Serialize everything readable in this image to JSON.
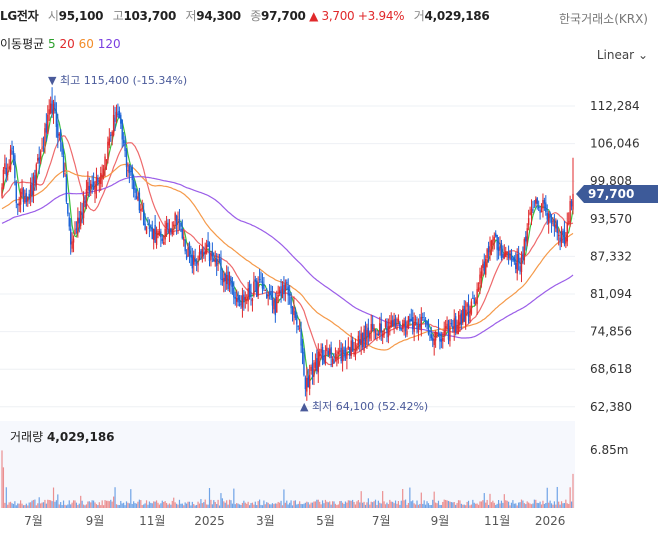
{
  "header": {
    "name": "LG전자",
    "open_label": "시",
    "open": "95,100",
    "high_label": "고",
    "high": "103,700",
    "low_label": "저",
    "low": "94,300",
    "close_label": "종",
    "close": "97,700",
    "change": "▲ 3,700",
    "change_pct": "+3.94%",
    "volume_label": "거",
    "volume": "4,029,186",
    "exchange": "한국거래소(KRX)"
  },
  "moving_average": {
    "label": "이동평균",
    "p5": "5",
    "p20": "20",
    "p60": "60",
    "p120": "120"
  },
  "scale_select": {
    "value": "Linear"
  },
  "current_price_tag": "97,700",
  "volume_panel": {
    "label": "거래량",
    "value": "4,029,186"
  },
  "colors": {
    "up": "#e0292b",
    "down": "#1a62d8",
    "ma5": "#3cc03c",
    "ma20": "#ee6a6c",
    "ma60": "#f59a4a",
    "ma120": "#9b5ee8",
    "tag": "#3d5a99"
  },
  "chart_data": {
    "type": "candlestick",
    "y_ticks": [
      "112,284",
      "106,046",
      "99,808",
      "93,570",
      "87,332",
      "81,094",
      "74,856",
      "68,618",
      "62,380"
    ],
    "y_tick_values": [
      112284,
      106046,
      99808,
      93570,
      87332,
      81094,
      74856,
      68618,
      62380
    ],
    "ylim": [
      62380,
      118000
    ],
    "x_ticks": [
      {
        "label": "7월",
        "day": 22
      },
      {
        "label": "9월",
        "day": 65
      },
      {
        "label": "11월",
        "day": 105
      },
      {
        "label": "2025",
        "day": 145
      },
      {
        "label": "3월",
        "day": 184
      },
      {
        "label": "5월",
        "day": 226
      },
      {
        "label": "7월",
        "day": 265
      },
      {
        "label": "9월",
        "day": 306
      },
      {
        "label": "11월",
        "day": 346
      },
      {
        "label": "2026",
        "day": 383
      }
    ],
    "total_days": 400,
    "close_path": [
      [
        0,
        100000
      ],
      [
        7,
        105000
      ],
      [
        10,
        96700
      ],
      [
        21,
        98300
      ],
      [
        35,
        112400
      ],
      [
        42,
        105000
      ],
      [
        48,
        89000
      ],
      [
        59,
        98000
      ],
      [
        70,
        101700
      ],
      [
        80,
        111600
      ],
      [
        87,
        103000
      ],
      [
        94,
        97500
      ],
      [
        101,
        92500
      ],
      [
        111,
        90000
      ],
      [
        122,
        94000
      ],
      [
        132,
        86000
      ],
      [
        143,
        88000
      ],
      [
        153,
        85000
      ],
      [
        167,
        80000
      ],
      [
        181,
        82600
      ],
      [
        191,
        79000
      ],
      [
        198,
        82600
      ],
      [
        209,
        73500
      ],
      [
        212,
        66000
      ],
      [
        223,
        71000
      ],
      [
        237,
        71000
      ],
      [
        251,
        73500
      ],
      [
        265,
        76000
      ],
      [
        278,
        76000
      ],
      [
        292,
        76800
      ],
      [
        306,
        73500
      ],
      [
        320,
        76800
      ],
      [
        331,
        80000
      ],
      [
        341,
        90000
      ],
      [
        351,
        88000
      ],
      [
        362,
        86000
      ],
      [
        372,
        96700
      ],
      [
        383,
        94000
      ],
      [
        393,
        90000
      ],
      [
        399,
        97700
      ]
    ],
    "max_high": {
      "label": "▼ 최고 115,400 (-15.34%)",
      "value": 115400
    },
    "min_low": {
      "label": "▲ 최저 64,100 (52.42%)",
      "value": 64100
    },
    "moving_averages": [
      5,
      20,
      60,
      120
    ],
    "volume_axis_tick": "6.85m",
    "volume_axis_value": 6850000,
    "last_volume": 4029186
  }
}
